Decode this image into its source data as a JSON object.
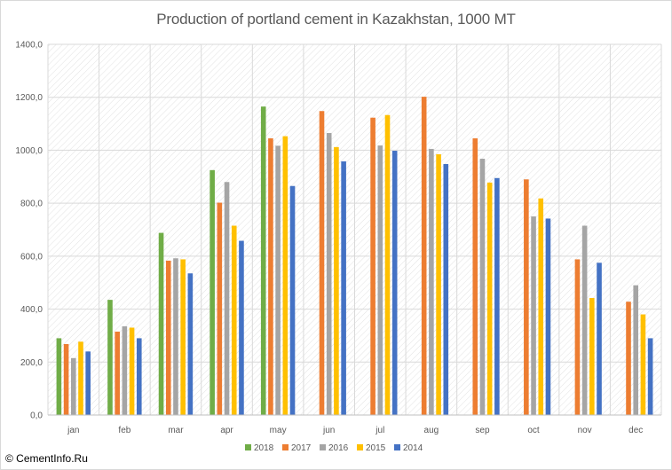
{
  "chart_data": {
    "type": "bar",
    "title": "Production of portland cement in Kazakhstan, 1000 MT",
    "xlabel": "",
    "ylabel": "",
    "ylim": [
      0,
      1400
    ],
    "y_ticks": [
      "0,0",
      "200,0",
      "400,0",
      "600,0",
      "800,0",
      "1000,0",
      "1200,0",
      "1400,0"
    ],
    "categories": [
      "jan",
      "feb",
      "mar",
      "apr",
      "may",
      "jun",
      "jul",
      "aug",
      "sep",
      "oct",
      "nov",
      "dec"
    ],
    "series": [
      {
        "name": "2018",
        "color": "#70ad47",
        "values": [
          290,
          435,
          688,
          925,
          1165,
          null,
          null,
          null,
          null,
          null,
          null,
          null
        ]
      },
      {
        "name": "2017",
        "color": "#ed7d31",
        "values": [
          268,
          315,
          583,
          802,
          1045,
          1148,
          1123,
          1202,
          1045,
          890,
          588,
          428
        ]
      },
      {
        "name": "2016",
        "color": "#a5a5a5",
        "values": [
          215,
          335,
          592,
          880,
          1017,
          1065,
          1018,
          1005,
          968,
          750,
          715,
          490
        ]
      },
      {
        "name": "2015",
        "color": "#ffc000",
        "values": [
          277,
          330,
          588,
          715,
          1053,
          1012,
          1133,
          985,
          878,
          818,
          442,
          380
        ]
      },
      {
        "name": "2014",
        "color": "#4472c4",
        "values": [
          240,
          290,
          535,
          658,
          865,
          958,
          998,
          948,
          895,
          742,
          575,
          290
        ]
      }
    ],
    "grid": true,
    "legend_position": "bottom"
  },
  "footer": {
    "copyright": "© CementInfo.Ru"
  }
}
